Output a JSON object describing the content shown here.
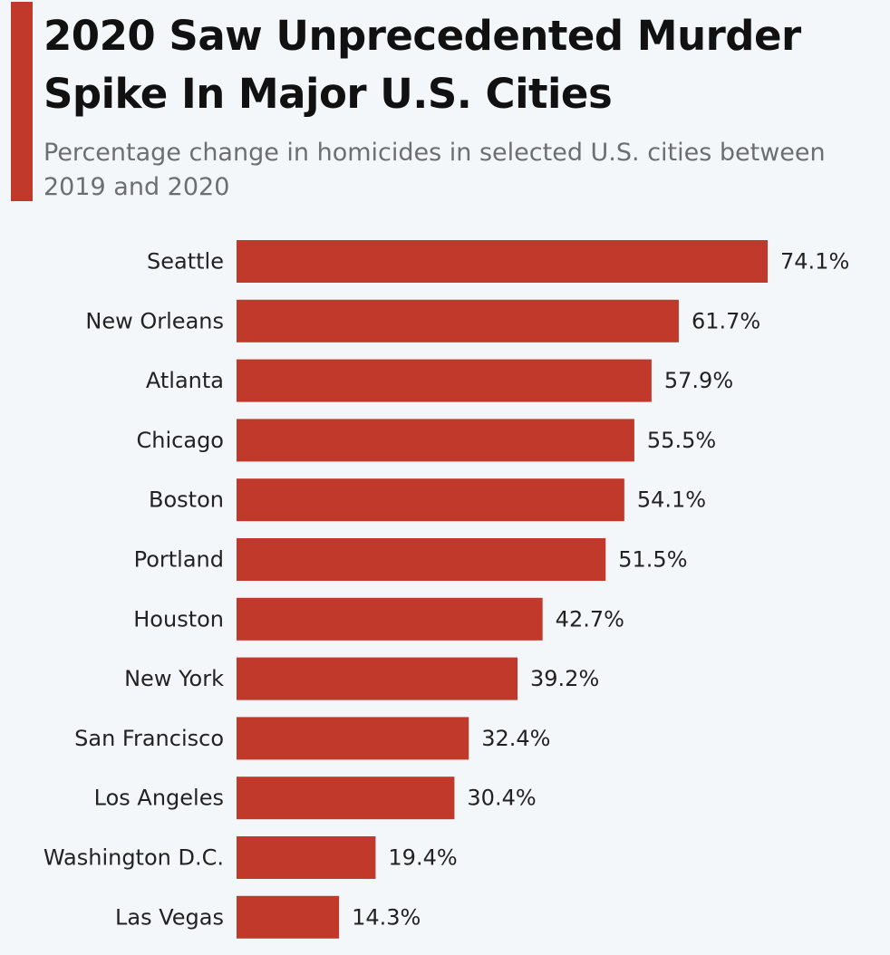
{
  "header": {
    "title": "2020 Saw Unprecedented Murder Spike In Major U.S. Cities",
    "subtitle": "Percentage change in homicides in selected U.S. cities between 2019 and 2020"
  },
  "colors": {
    "accent": "#c0392b",
    "bar": "#c0392b",
    "background": "#f4f7fa"
  },
  "chart_data": {
    "type": "bar",
    "orientation": "horizontal",
    "title": "2020 Saw Unprecedented Murder Spike In Major U.S. Cities",
    "subtitle": "Percentage change in homicides in selected U.S. cities between 2019 and 2020",
    "categories": [
      "Seattle",
      "New Orleans",
      "Atlanta",
      "Chicago",
      "Boston",
      "Portland",
      "Houston",
      "New York",
      "San Francisco",
      "Los Angeles",
      "Washington D.C.",
      "Las Vegas"
    ],
    "values": [
      74.1,
      61.7,
      57.9,
      55.5,
      54.1,
      51.5,
      42.7,
      39.2,
      32.4,
      30.4,
      19.4,
      14.3
    ],
    "data_labels": [
      "74.1%",
      "61.7%",
      "57.9%",
      "55.5%",
      "54.1%",
      "51.5%",
      "42.7%",
      "39.2%",
      "32.4%",
      "30.4%",
      "19.4%",
      "14.3%"
    ],
    "xlim": [
      0,
      74.1
    ],
    "grid": false,
    "legend": "none"
  }
}
